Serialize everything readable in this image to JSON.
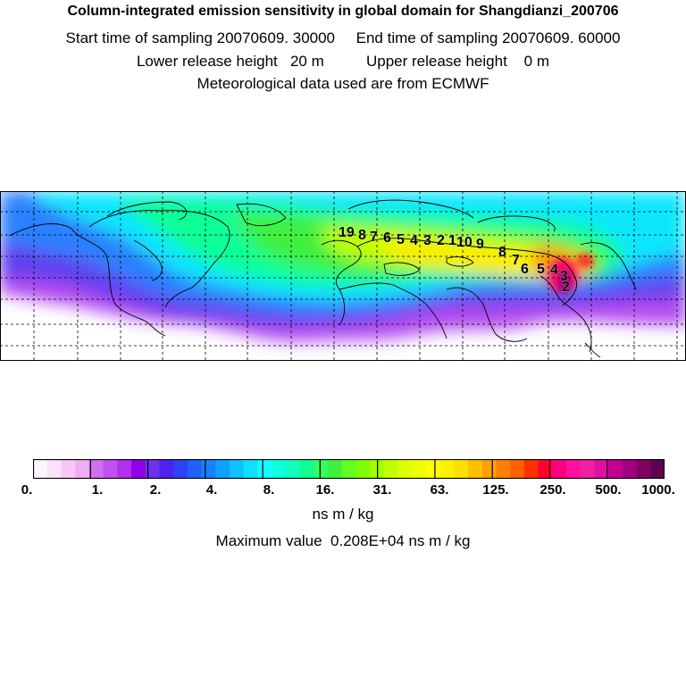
{
  "header": {
    "title": "Column-integrated emission sensitivity in global domain for Shangdianzi_200706",
    "sampling_line": "Start time of sampling 20070609. 30000     End time of sampling 20070609. 60000",
    "release_line": "Lower release height   20 m          Upper release height    0 m",
    "met_line": "Meteorological data used are from ECMWF"
  },
  "map": {
    "track_labels": [
      "19",
      "8",
      "7",
      "6",
      "5",
      "4",
      "3",
      "2",
      "1",
      "10",
      "9",
      "8",
      "7",
      "6",
      "5",
      "4",
      "3",
      "2"
    ]
  },
  "colorbar": {
    "colors": [
      "#fdf4fd",
      "#fbe2fb",
      "#f7c8f7",
      "#f0aef3",
      "#d070f0",
      "#c050f0",
      "#b030ee",
      "#9000e8",
      "#7030f0",
      "#5020f0",
      "#3040f8",
      "#2060ff",
      "#1880ff",
      "#10a0ff",
      "#10c0ff",
      "#10e0ff",
      "#10ffff",
      "#10ffe0",
      "#10ffc0",
      "#10ff90",
      "#30ff60",
      "#40f040",
      "#60ff20",
      "#80ff00",
      "#a0ff00",
      "#c0ff00",
      "#e0ff00",
      "#f0ff00",
      "#ffff00",
      "#fff000",
      "#ffe000",
      "#ffc000",
      "#ffa000",
      "#ff8000",
      "#ff6000",
      "#ff3000",
      "#ff0030",
      "#ff0080",
      "#ff10a0",
      "#f020a0",
      "#e010a0",
      "#c00090",
      "#a00080",
      "#800060",
      "#600050"
    ],
    "tick_labels": [
      "0.",
      "1.",
      "2.",
      "4.",
      "8.",
      "16.",
      "31.",
      "63.",
      "125.",
      "250.",
      "500.",
      "1000."
    ],
    "unit": "ns m / kg"
  },
  "max_value": "Maximum value  0.208E+04 ns m / kg"
}
